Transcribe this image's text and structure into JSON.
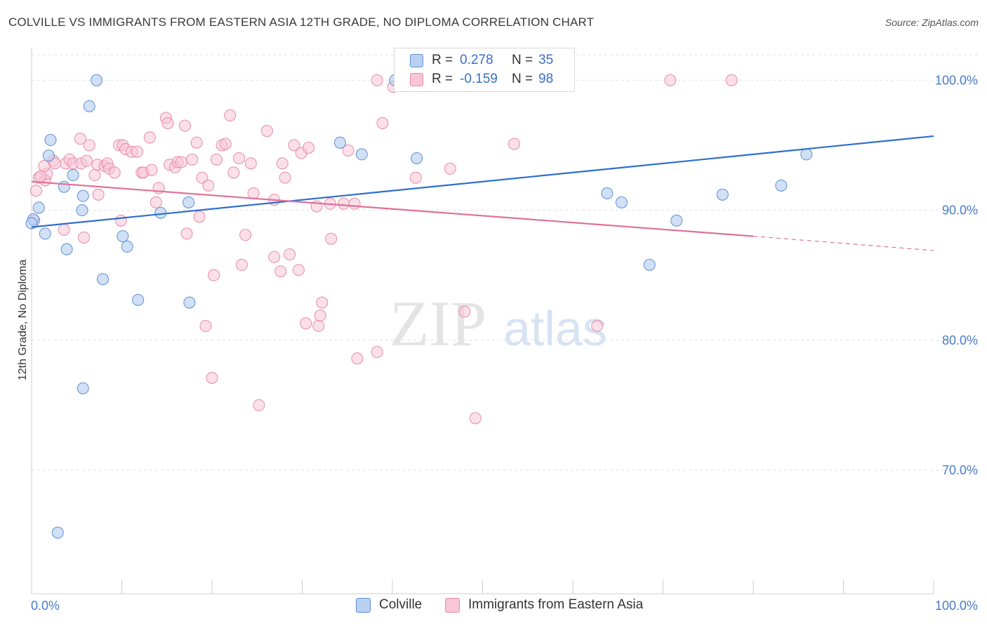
{
  "title": "COLVILLE VS IMMIGRANTS FROM EASTERN ASIA 12TH GRADE, NO DIPLOMA CORRELATION CHART",
  "source": "Source: ZipAtlas.com",
  "watermark": {
    "zip": "ZIP",
    "atlas": "atlas"
  },
  "legend": {
    "rows": [
      {
        "r_label": "R =",
        "r_value": "0.278",
        "n_label": "N =",
        "n_value": "35"
      },
      {
        "r_label": "R =",
        "r_value": "-0.159",
        "n_label": "N =",
        "n_value": "98"
      }
    ]
  },
  "bottom_legend": [
    "Colville",
    "Immigrants from Eastern Asia"
  ],
  "colors": {
    "blue_fill": "#b9d0f0",
    "blue_stroke": "#5b8fd6",
    "blue_line": "#2f6fcc",
    "pink_fill": "#f8c6d6",
    "pink_stroke": "#e88aa8",
    "pink_line": "#e0709a",
    "grid": "#e2e2e2",
    "tick_text": "#4a7cc9"
  },
  "chart_data": {
    "type": "scatter",
    "title": "COLVILLE VS IMMIGRANTS FROM EASTERN ASIA 12TH GRADE, NO DIPLOMA CORRELATION CHART",
    "xlabel": "",
    "ylabel": "12th Grade, No Diploma",
    "xlim": [
      0,
      100
    ],
    "ylim": [
      60.5,
      102.5
    ],
    "x_tick_labels": [
      "0.0%",
      "100.0%"
    ],
    "y_ticks": [
      70,
      80,
      90,
      100
    ],
    "y_tick_labels": [
      "70.0%",
      "80.0%",
      "90.0%",
      "100.0%"
    ],
    "grid": true,
    "series": [
      {
        "name": "Colville",
        "r": 0.278,
        "n": 35,
        "trend": {
          "x0": 0,
          "y0": 88.7,
          "x1": 100,
          "y1": 95.7
        },
        "points": [
          [
            7.2,
            100
          ],
          [
            6.4,
            98
          ],
          [
            2.1,
            95.4
          ],
          [
            1.9,
            94.2
          ],
          [
            4.6,
            92.7
          ],
          [
            3.6,
            91.8
          ],
          [
            5.7,
            91.1
          ],
          [
            0.8,
            90.2
          ],
          [
            5.6,
            90
          ],
          [
            0.2,
            89.3
          ],
          [
            1.5,
            88.2
          ],
          [
            10.1,
            88
          ],
          [
            10.6,
            87.2
          ],
          [
            3.9,
            87
          ],
          [
            7.9,
            84.7
          ],
          [
            11.8,
            83.1
          ],
          [
            17.4,
            90.6
          ],
          [
            14.3,
            89.8
          ],
          [
            17.5,
            82.9
          ],
          [
            5.7,
            76.3
          ],
          [
            2.9,
            65.2
          ],
          [
            34.2,
            95.2
          ],
          [
            36.6,
            94.3
          ],
          [
            42.7,
            94
          ],
          [
            40.3,
            100
          ],
          [
            48.2,
            100
          ],
          [
            53.9,
            100
          ],
          [
            63.8,
            91.3
          ],
          [
            65.4,
            90.6
          ],
          [
            68.5,
            85.8
          ],
          [
            71.5,
            89.2
          ],
          [
            76.6,
            91.2
          ],
          [
            83.1,
            91.9
          ],
          [
            85.9,
            94.3
          ],
          [
            0,
            89
          ]
        ]
      },
      {
        "name": "Immigrants from Eastern Asia",
        "r": -0.159,
        "n": 98,
        "trend": {
          "x0": 0,
          "y0": 92.2,
          "x1": 80,
          "y1": 88.0,
          "dash_x1": 100,
          "dash_y1": 86.9
        },
        "points": [
          [
            0.5,
            91.5
          ],
          [
            0.8,
            92.5
          ],
          [
            1.5,
            92.3
          ],
          [
            1.7,
            92.8
          ],
          [
            1.4,
            93.4
          ],
          [
            2.4,
            93.8
          ],
          [
            3.8,
            93.6
          ],
          [
            2.6,
            93.6
          ],
          [
            4.2,
            93.9
          ],
          [
            4.6,
            93.6
          ],
          [
            5.4,
            95.5
          ],
          [
            5.5,
            93.6
          ],
          [
            6.4,
            95
          ],
          [
            6.1,
            93.8
          ],
          [
            7.0,
            92.7
          ],
          [
            7.3,
            93.5
          ],
          [
            8.1,
            93.4
          ],
          [
            8.4,
            93.6
          ],
          [
            8.6,
            93.2
          ],
          [
            9.2,
            92.9
          ],
          [
            9.7,
            95
          ],
          [
            10.1,
            95
          ],
          [
            10.4,
            94.7
          ],
          [
            11.1,
            94.5
          ],
          [
            11.7,
            94.5
          ],
          [
            12.2,
            92.9
          ],
          [
            12.4,
            92.9
          ],
          [
            13.3,
            93.1
          ],
          [
            13.1,
            95.6
          ],
          [
            14.9,
            97.1
          ],
          [
            15.1,
            96.7
          ],
          [
            15.3,
            93.5
          ],
          [
            15.9,
            93.3
          ],
          [
            16.2,
            93.7
          ],
          [
            16.6,
            93.7
          ],
          [
            17.0,
            96.5
          ],
          [
            17.8,
            93.9
          ],
          [
            18.3,
            95.2
          ],
          [
            18.9,
            92.5
          ],
          [
            19.6,
            91.9
          ],
          [
            20.5,
            93.9
          ],
          [
            21.1,
            95
          ],
          [
            21.5,
            95.1
          ],
          [
            22.0,
            97.3
          ],
          [
            22.4,
            92.9
          ],
          [
            23.0,
            94
          ],
          [
            24.3,
            93.6
          ],
          [
            24.6,
            91.3
          ],
          [
            26.1,
            96.1
          ],
          [
            26.9,
            90.8
          ],
          [
            27.8,
            93.6
          ],
          [
            28.1,
            92.5
          ],
          [
            29.1,
            95
          ],
          [
            29.9,
            94.4
          ],
          [
            30.7,
            94.8
          ],
          [
            31.6,
            90.3
          ],
          [
            33.1,
            90.5
          ],
          [
            34.6,
            90.5
          ],
          [
            35.1,
            94.6
          ],
          [
            35.8,
            90.5
          ],
          [
            38.3,
            100
          ],
          [
            38.9,
            96.7
          ],
          [
            40.1,
            99.5
          ],
          [
            42.6,
            92.5
          ],
          [
            46.4,
            93.2
          ],
          [
            53.5,
            95.1
          ],
          [
            70.8,
            100
          ],
          [
            77.6,
            100
          ],
          [
            3.6,
            88.5
          ],
          [
            5.8,
            87.9
          ],
          [
            9.9,
            89.2
          ],
          [
            13.8,
            90.6
          ],
          [
            14.1,
            91.7
          ],
          [
            17.2,
            88.2
          ],
          [
            18.6,
            89.5
          ],
          [
            20.2,
            85
          ],
          [
            19.3,
            81.1
          ],
          [
            20.0,
            77.1
          ],
          [
            23.3,
            85.8
          ],
          [
            23.7,
            88.1
          ],
          [
            25.2,
            75
          ],
          [
            26.9,
            86.4
          ],
          [
            27.6,
            85.3
          ],
          [
            28.6,
            86.6
          ],
          [
            29.6,
            85.4
          ],
          [
            30.4,
            81.3
          ],
          [
            31.8,
            81.1
          ],
          [
            32.0,
            81.9
          ],
          [
            32.2,
            82.9
          ],
          [
            33.2,
            87.8
          ],
          [
            36.1,
            78.6
          ],
          [
            38.3,
            79.1
          ],
          [
            48.0,
            82.2
          ],
          [
            49.2,
            74
          ],
          [
            62.7,
            81.1
          ],
          [
            7.4,
            91.2
          ],
          [
            0.3,
            89.2
          ],
          [
            1.0,
            92.6
          ]
        ]
      }
    ]
  }
}
